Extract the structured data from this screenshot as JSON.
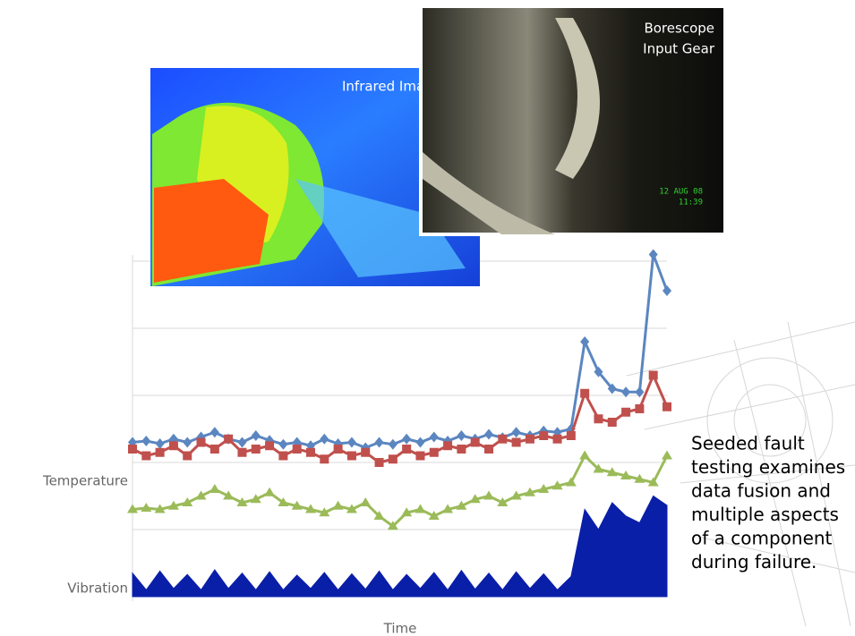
{
  "infrared_image": {
    "label": "Infrared Image-TGB"
  },
  "borescope_image": {
    "label": [
      "Borescope",
      "Input Gear"
    ],
    "timestamp": [
      "12 AUG 08",
      "11:39"
    ]
  },
  "chart_data": {
    "type": "line",
    "x_label": "Time",
    "y_labels": [
      "Temperature",
      "Vibration"
    ],
    "ylim": [
      0,
      5
    ],
    "series": [
      {
        "color": "#5b86c0",
        "marker": "diamond",
        "values": [
          2.3,
          2.32,
          2.28,
          2.35,
          2.3,
          2.38,
          2.45,
          2.35,
          2.3,
          2.4,
          2.33,
          2.27,
          2.3,
          2.25,
          2.35,
          2.28,
          2.3,
          2.22,
          2.3,
          2.27,
          2.35,
          2.3,
          2.38,
          2.32,
          2.4,
          2.35,
          2.42,
          2.37,
          2.45,
          2.4,
          2.47,
          2.45,
          2.5,
          3.8,
          3.35,
          3.1,
          3.05,
          3.05,
          5.1,
          4.56
        ]
      },
      {
        "color": "#c0504d",
        "marker": "square",
        "values": [
          2.2,
          2.1,
          2.15,
          2.25,
          2.1,
          2.3,
          2.2,
          2.35,
          2.15,
          2.2,
          2.25,
          2.1,
          2.2,
          2.15,
          2.05,
          2.2,
          2.1,
          2.15,
          2.0,
          2.05,
          2.2,
          2.1,
          2.15,
          2.25,
          2.2,
          2.3,
          2.2,
          2.35,
          2.3,
          2.35,
          2.4,
          2.35,
          2.4,
          3.03,
          2.65,
          2.6,
          2.75,
          2.8,
          3.3,
          2.83
        ]
      },
      {
        "color": "#9bbb59",
        "marker": "triangle",
        "values": [
          1.3,
          1.32,
          1.3,
          1.35,
          1.4,
          1.5,
          1.6,
          1.5,
          1.4,
          1.45,
          1.55,
          1.4,
          1.35,
          1.3,
          1.25,
          1.35,
          1.3,
          1.4,
          1.2,
          1.05,
          1.25,
          1.3,
          1.2,
          1.3,
          1.35,
          1.45,
          1.5,
          1.4,
          1.5,
          1.55,
          1.6,
          1.65,
          1.7,
          2.1,
          1.9,
          1.85,
          1.8,
          1.75,
          1.7,
          2.1
        ]
      },
      {
        "color": "#0a1fa8",
        "kind": "area",
        "values": [
          0.35,
          0.1,
          0.38,
          0.12,
          0.33,
          0.1,
          0.4,
          0.12,
          0.35,
          0.1,
          0.37,
          0.1,
          0.32,
          0.12,
          0.36,
          0.1,
          0.34,
          0.11,
          0.38,
          0.1,
          0.33,
          0.12,
          0.36,
          0.1,
          0.39,
          0.11,
          0.35,
          0.1,
          0.37,
          0.12,
          0.34,
          0.1,
          0.3,
          1.3,
          1.0,
          1.4,
          1.2,
          1.1,
          1.5,
          1.36
        ]
      }
    ]
  },
  "caption": [
    "Seeded fault",
    "testing examines",
    "data fusion and",
    "multiple aspects",
    "of a component",
    "during failure."
  ]
}
